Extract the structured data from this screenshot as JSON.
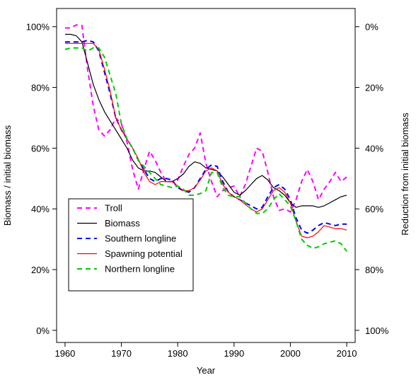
{
  "chart_data": {
    "type": "line",
    "title": "",
    "xlabel": "Year",
    "ylabel": "Biomass / initial biomass",
    "ylabel_right": "Reduction from initial biomass",
    "xlim": [
      1958.5,
      2011.5
    ],
    "ylim": [
      -0.04,
      1.06
    ],
    "x_ticks": [
      1960,
      1970,
      1980,
      1990,
      2000,
      2010
    ],
    "x_tick_labels": [
      "1960",
      "1970",
      "1980",
      "1990",
      "2000",
      "2010"
    ],
    "y_ticks": [
      0,
      0.2,
      0.4,
      0.6,
      0.8,
      1.0
    ],
    "y_tick_labels_left": [
      "0%",
      "20%",
      "40%",
      "60%",
      "80%",
      "100%"
    ],
    "y_tick_labels_right": [
      "100%",
      "80%",
      "60%",
      "40%",
      "20%",
      "0%"
    ],
    "grid": false,
    "legend_position": "bottom-left",
    "x": [
      1960,
      1961,
      1962,
      1963,
      1964,
      1965,
      1966,
      1967,
      1968,
      1969,
      1970,
      1971,
      1972,
      1973,
      1974,
      1975,
      1976,
      1977,
      1978,
      1979,
      1980,
      1981,
      1982,
      1983,
      1984,
      1985,
      1986,
      1987,
      1988,
      1989,
      1990,
      1991,
      1992,
      1993,
      1994,
      1995,
      1996,
      1997,
      1998,
      1999,
      2000,
      2001,
      2002,
      2003,
      2004,
      2005,
      2006,
      2007,
      2008,
      2009,
      2010
    ],
    "series": [
      {
        "name": "Troll",
        "color": "#ff00ff",
        "dash": "dashed",
        "values": [
          0.996,
          0.996,
          1.006,
          1.004,
          0.86,
          0.74,
          0.66,
          0.64,
          0.66,
          0.7,
          0.68,
          0.62,
          0.53,
          0.465,
          0.53,
          0.59,
          0.56,
          0.52,
          0.49,
          0.49,
          0.495,
          0.54,
          0.58,
          0.6,
          0.65,
          0.55,
          0.49,
          0.44,
          0.46,
          0.47,
          0.475,
          0.44,
          0.48,
          0.54,
          0.6,
          0.59,
          0.52,
          0.44,
          0.395,
          0.4,
          0.39,
          0.43,
          0.49,
          0.53,
          0.49,
          0.43,
          0.465,
          0.49,
          0.52,
          0.49,
          0.505
        ]
      },
      {
        "name": "Biomass",
        "color": "#000000",
        "dash": "solid",
        "values": [
          0.975,
          0.975,
          0.97,
          0.95,
          0.88,
          0.81,
          0.76,
          0.72,
          0.69,
          0.66,
          0.63,
          0.6,
          0.56,
          0.535,
          0.525,
          0.525,
          0.52,
          0.505,
          0.49,
          0.49,
          0.5,
          0.515,
          0.54,
          0.555,
          0.55,
          0.535,
          0.53,
          0.525,
          0.505,
          0.48,
          0.455,
          0.445,
          0.46,
          0.48,
          0.5,
          0.51,
          0.495,
          0.47,
          0.46,
          0.445,
          0.42,
          0.405,
          0.41,
          0.41,
          0.41,
          0.405,
          0.41,
          0.42,
          0.43,
          0.44,
          0.445
        ]
      },
      {
        "name": "Southern longline",
        "color": "#0000ff",
        "dash": "dashed",
        "values": [
          0.95,
          0.95,
          0.95,
          0.95,
          0.955,
          0.95,
          0.92,
          0.85,
          0.78,
          0.7,
          0.66,
          0.63,
          0.6,
          0.56,
          0.53,
          0.5,
          0.49,
          0.5,
          0.5,
          0.495,
          0.47,
          0.46,
          0.455,
          0.47,
          0.5,
          0.53,
          0.545,
          0.54,
          0.49,
          0.455,
          0.44,
          0.43,
          0.42,
          0.41,
          0.4,
          0.405,
          0.44,
          0.47,
          0.48,
          0.465,
          0.43,
          0.37,
          0.33,
          0.32,
          0.33,
          0.345,
          0.355,
          0.35,
          0.345,
          0.35,
          0.35
        ]
      },
      {
        "name": "Spawning potential",
        "color": "#ff0000",
        "dash": "solid",
        "values": [
          0.945,
          0.945,
          0.945,
          0.945,
          0.945,
          0.945,
          0.925,
          0.86,
          0.79,
          0.7,
          0.66,
          0.63,
          0.6,
          0.565,
          0.52,
          0.49,
          0.48,
          0.49,
          0.49,
          0.49,
          0.475,
          0.46,
          0.46,
          0.47,
          0.495,
          0.525,
          0.535,
          0.525,
          0.48,
          0.455,
          0.44,
          0.43,
          0.415,
          0.4,
          0.39,
          0.4,
          0.43,
          0.46,
          0.47,
          0.455,
          0.42,
          0.36,
          0.31,
          0.305,
          0.31,
          0.325,
          0.345,
          0.34,
          0.335,
          0.335,
          0.33
        ]
      },
      {
        "name": "Northern longline",
        "color": "#00cc00",
        "dash": "dashed",
        "values": [
          0.925,
          0.93,
          0.93,
          0.93,
          0.92,
          0.93,
          0.93,
          0.9,
          0.84,
          0.78,
          0.68,
          0.63,
          0.6,
          0.56,
          0.54,
          0.52,
          0.5,
          0.48,
          0.475,
          0.47,
          0.475,
          0.465,
          0.445,
          0.445,
          0.45,
          0.46,
          0.52,
          0.52,
          0.47,
          0.445,
          0.44,
          0.44,
          0.42,
          0.4,
          0.385,
          0.385,
          0.4,
          0.43,
          0.45,
          0.43,
          0.41,
          0.36,
          0.3,
          0.28,
          0.27,
          0.275,
          0.285,
          0.29,
          0.295,
          0.285,
          0.26
        ]
      }
    ]
  }
}
